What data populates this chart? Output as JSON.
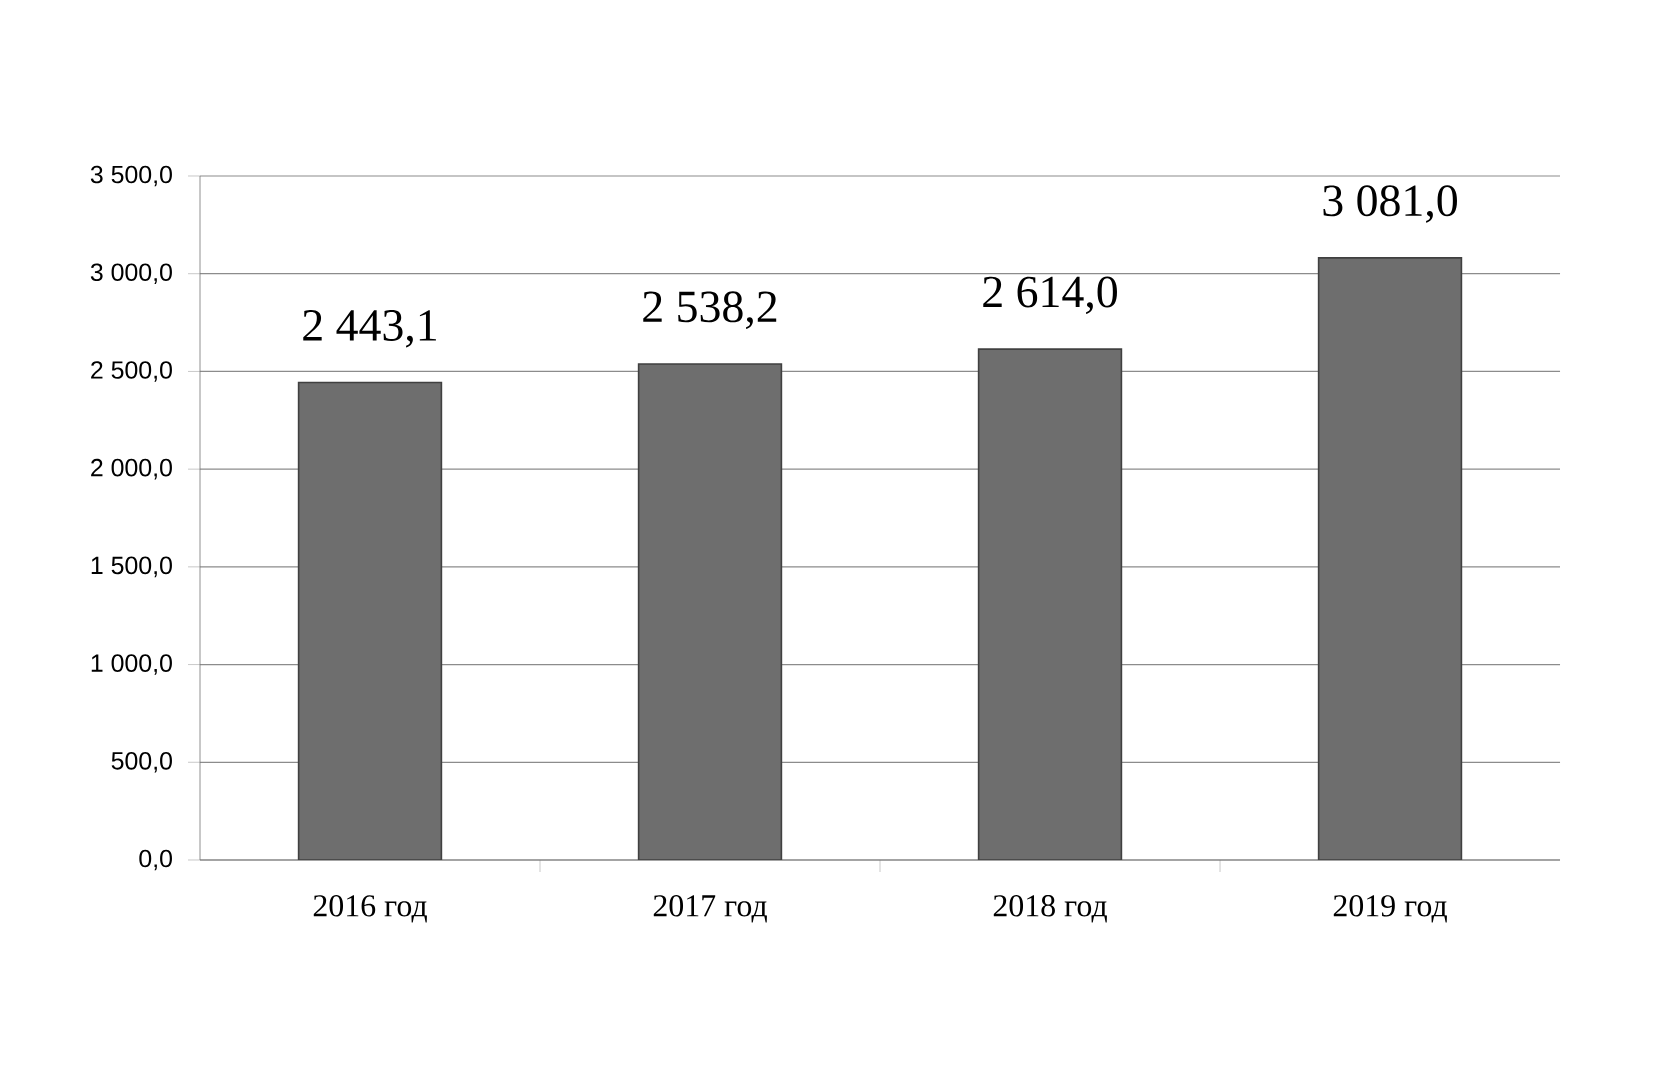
{
  "chart_data": {
    "type": "bar",
    "categories": [
      "2016 год",
      "2017 год",
      "2018 год",
      "2019 год"
    ],
    "values": [
      2443.1,
      2538.2,
      2614.0,
      3081.0
    ],
    "value_labels": [
      "2 443,1",
      "2 538,2",
      "2 614,0",
      "3 081,0"
    ],
    "color": "#6e6e6e",
    "ylim": [
      0,
      3500
    ],
    "yticks": [
      {
        "value": 0,
        "label": "0,0"
      },
      {
        "value": 500,
        "label": "500,0"
      },
      {
        "value": 1000,
        "label": "1 000,0"
      },
      {
        "value": 1500,
        "label": "1 500,0"
      },
      {
        "value": 2000,
        "label": "2 000,0"
      },
      {
        "value": 2500,
        "label": "2 500,0"
      },
      {
        "value": 3000,
        "label": "3 000,0"
      },
      {
        "value": 3500,
        "label": "3 500,0"
      }
    ],
    "grid": "y"
  }
}
